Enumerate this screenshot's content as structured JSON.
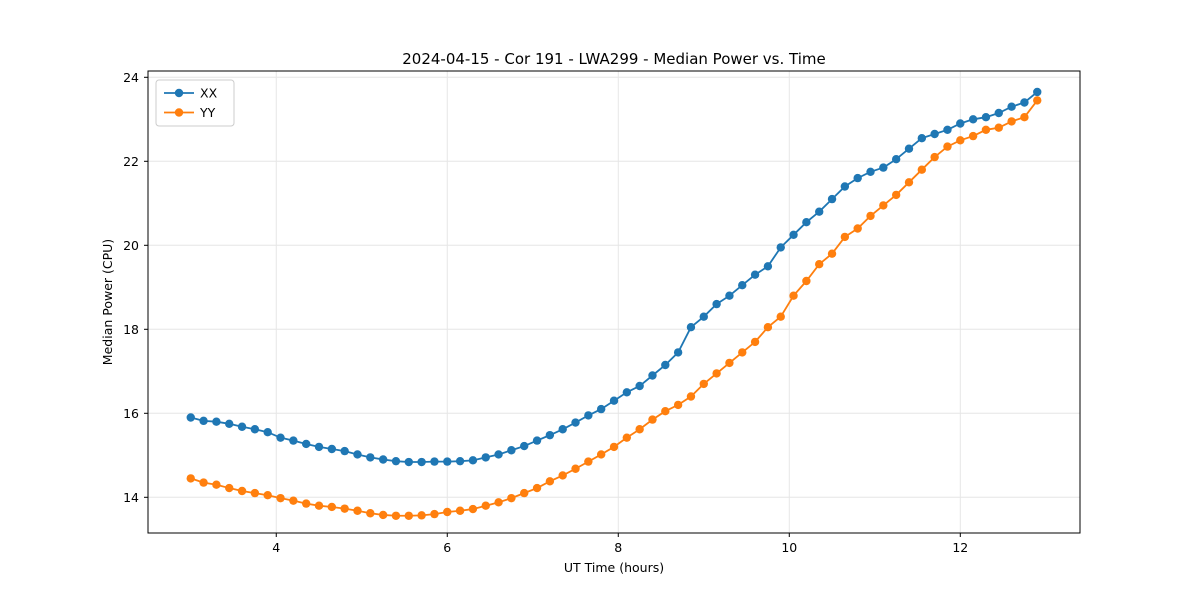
{
  "chart_data": {
    "type": "line",
    "title": "2024-04-15 - Cor 191 - LWA299 - Median Power vs. Time",
    "xlabel": "UT Time (hours)",
    "ylabel": "Median Power (CPU)",
    "xlim": [
      2.5,
      13.4
    ],
    "ylim": [
      13.15,
      24.15
    ],
    "xticks": [
      4,
      6,
      8,
      10,
      12
    ],
    "yticks": [
      14,
      16,
      18,
      20,
      22,
      24
    ],
    "grid": true,
    "legend_position": "upper left",
    "x": [
      3.0,
      3.15,
      3.3,
      3.45,
      3.6,
      3.75,
      3.9,
      4.05,
      4.2,
      4.35,
      4.5,
      4.65,
      4.8,
      4.95,
      5.1,
      5.25,
      5.4,
      5.55,
      5.7,
      5.85,
      6.0,
      6.15,
      6.3,
      6.45,
      6.6,
      6.75,
      6.9,
      7.05,
      7.2,
      7.35,
      7.5,
      7.65,
      7.8,
      7.95,
      8.1,
      8.25,
      8.4,
      8.55,
      8.7,
      8.85,
      9.0,
      9.15,
      9.3,
      9.45,
      9.6,
      9.75,
      9.9,
      10.05,
      10.2,
      10.35,
      10.5,
      10.65,
      10.8,
      10.95,
      11.1,
      11.25,
      11.4,
      11.55,
      11.7,
      11.85,
      12.0,
      12.15,
      12.3,
      12.45,
      12.6,
      12.75,
      12.9
    ],
    "series": [
      {
        "name": "XX",
        "color": "#1f77b4",
        "values": [
          15.9,
          15.82,
          15.8,
          15.75,
          15.68,
          15.62,
          15.55,
          15.42,
          15.35,
          15.27,
          15.2,
          15.15,
          15.1,
          15.02,
          14.95,
          14.9,
          14.86,
          14.84,
          14.84,
          14.85,
          14.85,
          14.86,
          14.88,
          14.95,
          15.02,
          15.12,
          15.22,
          15.35,
          15.48,
          15.62,
          15.78,
          15.95,
          16.1,
          16.3,
          16.5,
          16.65,
          16.9,
          17.15,
          17.45,
          18.05,
          18.3,
          18.6,
          18.8,
          19.05,
          19.3,
          19.5,
          19.95,
          20.25,
          20.55,
          20.8,
          21.1,
          21.4,
          21.6,
          21.75,
          21.85,
          22.05,
          22.3,
          22.55,
          22.65,
          22.75,
          22.9,
          23.0,
          23.05,
          23.15,
          23.3,
          23.4,
          23.65
        ]
      },
      {
        "name": "YY",
        "color": "#ff7f0e",
        "values": [
          14.45,
          14.35,
          14.3,
          14.22,
          14.15,
          14.1,
          14.05,
          13.98,
          13.92,
          13.85,
          13.8,
          13.77,
          13.73,
          13.68,
          13.62,
          13.58,
          13.56,
          13.56,
          13.57,
          13.6,
          13.65,
          13.68,
          13.72,
          13.8,
          13.88,
          13.98,
          14.1,
          14.22,
          14.38,
          14.52,
          14.68,
          14.85,
          15.02,
          15.2,
          15.42,
          15.62,
          15.85,
          16.05,
          16.2,
          16.4,
          16.7,
          16.95,
          17.2,
          17.45,
          17.7,
          18.05,
          18.3,
          18.8,
          19.15,
          19.55,
          19.8,
          20.2,
          20.4,
          20.7,
          20.95,
          21.2,
          21.5,
          21.8,
          22.1,
          22.35,
          22.5,
          22.6,
          22.75,
          22.8,
          22.95,
          23.05,
          23.45
        ]
      }
    ]
  }
}
